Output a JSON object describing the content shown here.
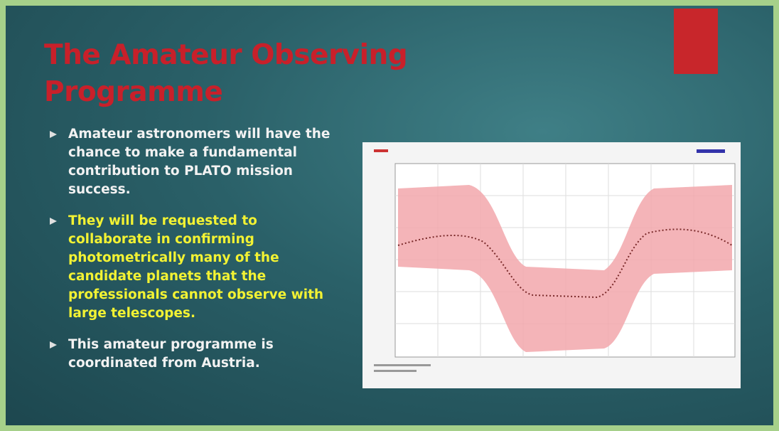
{
  "slide": {
    "title": "The Amateur Observing Programme",
    "bullets": [
      {
        "text": "Amateur astronomers will have the chance to make a fundamental contribution to PLATO mission success.",
        "highlight": false
      },
      {
        "text": "They will be requested to collaborate in confirming photometrically many of the candidate planets that the professionals cannot observe with large telescopes.",
        "highlight": true
      },
      {
        "text": "This amateur programme is coordinated from Austria.",
        "highlight": false
      }
    ]
  }
}
